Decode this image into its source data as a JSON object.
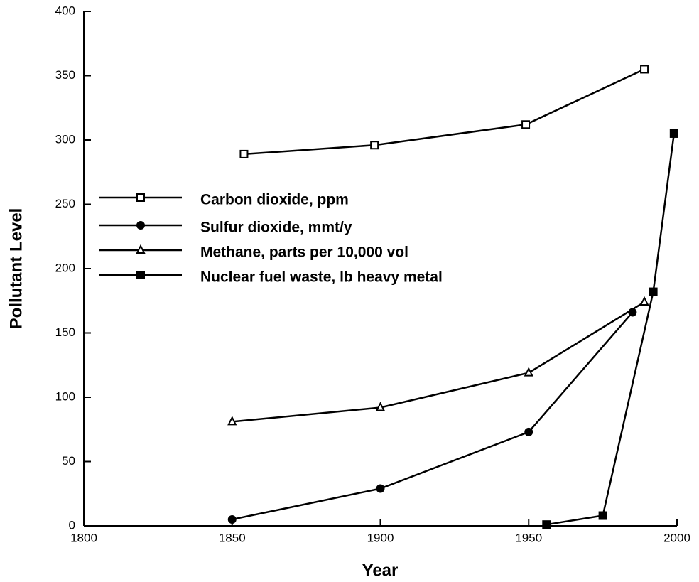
{
  "chart_data": {
    "type": "line",
    "x_label": "Year",
    "y_label": "Pollutant Level",
    "xlim": [
      1800,
      2000
    ],
    "xticks": [
      1800,
      1850,
      1900,
      1950,
      2000
    ],
    "ylim": [
      0,
      400
    ],
    "yticks": [
      0,
      50,
      100,
      150,
      200,
      250,
      300,
      350,
      400
    ],
    "legend": "upper-left",
    "series": [
      {
        "name": "Carbon dioxide, ppm",
        "color": "#000000",
        "marker": "square-open",
        "x": [
          1854,
          1898,
          1949,
          1989
        ],
        "values": [
          289,
          296,
          312,
          355
        ]
      },
      {
        "name": "Sulfur dioxide, mmt/y",
        "color": "#000000",
        "marker": "circle-filled",
        "x": [
          1850,
          1900,
          1950,
          1985
        ],
        "values": [
          5,
          29,
          73,
          166
        ]
      },
      {
        "name": "Methane, parts per 10,000 vol",
        "color": "#000000",
        "marker": "triangle-open",
        "x": [
          1850,
          1900,
          1950,
          1989
        ],
        "values": [
          81,
          92,
          119,
          174
        ]
      },
      {
        "name": "Nuclear fuel waste, lb heavy metal",
        "color": "#000000",
        "marker": "square-filled",
        "x": [
          1956,
          1975,
          1992,
          1999
        ],
        "values": [
          1,
          8,
          182,
          305
        ]
      }
    ]
  }
}
